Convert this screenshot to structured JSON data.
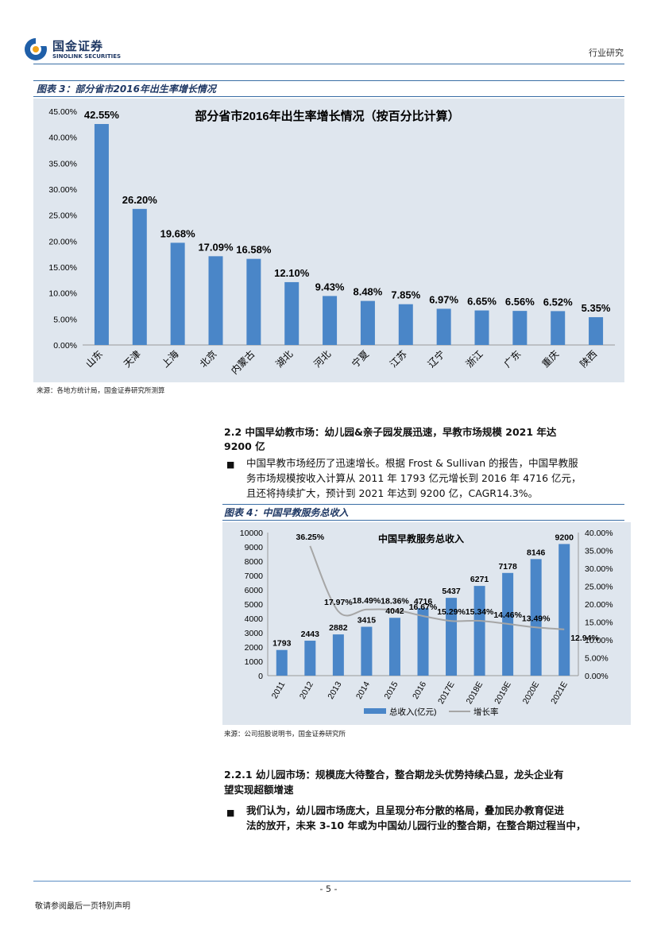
{
  "header": {
    "logo_cn": "国金证券",
    "logo_en": "SINOLINK SECURITIES",
    "section": "行业研究"
  },
  "figure3": {
    "label": "图表 3：部分省市2016年出生率增长情况",
    "source": "来源：各地方统计局，国金证券研究所测算",
    "chart_data": {
      "type": "bar",
      "title": "部分省市2016年出生率增长情况（按百分比计算）",
      "categories": [
        "山东",
        "天津",
        "上海",
        "北京",
        "内蒙古",
        "湖北",
        "河北",
        "宁夏",
        "江苏",
        "辽宁",
        "浙江",
        "广东",
        "重庆",
        "陕西"
      ],
      "values": [
        42.55,
        26.2,
        19.68,
        17.09,
        16.58,
        12.1,
        9.43,
        8.48,
        7.85,
        6.97,
        6.65,
        6.56,
        6.52,
        5.35
      ],
      "value_labels": [
        "42.55%",
        "26.20%",
        "19.68%",
        "17.09%",
        "16.58%",
        "12.10%",
        "9.43%",
        "8.48%",
        "7.85%",
        "6.97%",
        "6.65%",
        "6.56%",
        "6.52%",
        "5.35%"
      ],
      "ytick_labels": [
        "0.00%",
        "5.00%",
        "10.00%",
        "15.00%",
        "20.00%",
        "25.00%",
        "30.00%",
        "35.00%",
        "40.00%",
        "45.00%"
      ],
      "ylim": [
        0,
        45
      ],
      "bar_color": "#4a86c8"
    }
  },
  "section_2_2": {
    "heading_line1": "2.2 中国早幼教市场：幼儿园&亲子园发展迅速，早教市场规模 2021 年达",
    "heading_line2": "9200 亿",
    "bullet": "■",
    "para_line1": "中国早教市场经历了迅速增长。根据 Frost & Sullivan 的报告，中国早教服",
    "para_line2": "务市场规模按收入计算从 2011 年 1793 亿元增长到 2016 年 4716 亿元，",
    "para_line3": "且还将持续扩大，预计到 2021 年达到 9200 亿，CAGR14.3%。"
  },
  "figure4": {
    "label": "图表 4：中国早教服务总收入",
    "source": "来源：公司招股说明书，国金证券研究所",
    "chart_data": {
      "type": "bar",
      "title": "中国早教服务总收入",
      "categories": [
        "2011",
        "2012",
        "2013",
        "2014",
        "2015",
        "2016",
        "2017E",
        "2018E",
        "2019E",
        "2020E",
        "2021E"
      ],
      "series": [
        {
          "name": "总收入(亿元)",
          "type": "bar",
          "axis": "left",
          "values": [
            1793,
            2443,
            2882,
            3415,
            4042,
            4716,
            5437,
            6271,
            7178,
            8146,
            9200
          ],
          "color": "#4a86c8"
        },
        {
          "name": "增长率",
          "type": "line",
          "axis": "right",
          "values": [
            null,
            36.25,
            17.97,
            18.49,
            18.36,
            16.67,
            15.29,
            15.34,
            14.46,
            13.49,
            12.94
          ],
          "color": "#a6a6a6"
        }
      ],
      "bar_labels": [
        "1793",
        "2443",
        "2882",
        "3415",
        "4042",
        "4716",
        "5437",
        "6271",
        "7178",
        "8146",
        "9200"
      ],
      "growth_labels": [
        "36.25%",
        "17.97%",
        "18.49%",
        "18.36%",
        "16.67%",
        "15.29%",
        "15.34%",
        "14.46%",
        "13.49%",
        "12.94%"
      ],
      "left_ticks": [
        "0",
        "1000",
        "2000",
        "3000",
        "4000",
        "5000",
        "6000",
        "7000",
        "8000",
        "9000",
        "10000"
      ],
      "right_ticks": [
        "0.00%",
        "5.00%",
        "10.00%",
        "15.00%",
        "20.00%",
        "25.00%",
        "30.00%",
        "35.00%",
        "40.00%"
      ],
      "ylim_left": [
        0,
        10000
      ],
      "ylim_right": [
        0,
        40
      ],
      "legend": [
        "总收入(亿元)",
        "增长率"
      ]
    }
  },
  "section_2_2_1": {
    "heading_line1": "2.2.1  幼儿园市场：规模庞大待整合，整合期龙头优势持续凸显，龙头企业有",
    "heading_line2": "望实现超额增速",
    "bullet": "■",
    "para_line1": "我们认为，幼儿园市场庞大，且呈现分布分散的格局，叠加民办教育促进",
    "para_line2": "法的放开，未来 3-10 年或为中国幼儿园行业的整合期，在整合期过程当中，"
  },
  "footer": {
    "page": "- 5 -",
    "disclaimer": "敬请参阅最后一页特别声明"
  }
}
